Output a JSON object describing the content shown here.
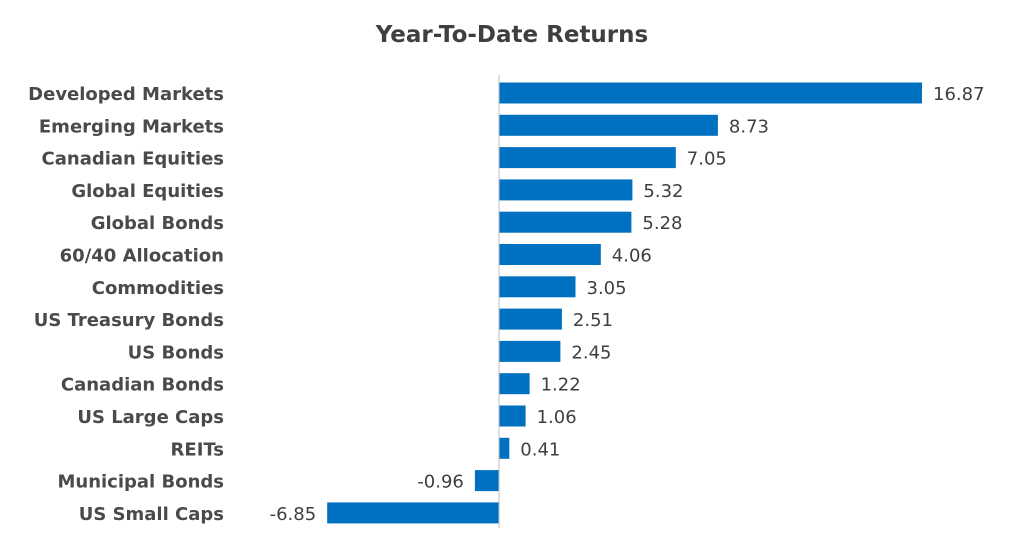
{
  "chart_data": {
    "type": "bar",
    "orientation": "horizontal",
    "title": "Year-To-Date Returns",
    "categories": [
      "Developed Markets",
      "Emerging Markets",
      "Canadian Equities",
      "Global Equities",
      "Global Bonds",
      "60/40 Allocation",
      "Commodities",
      "US Treasury Bonds",
      "US Bonds",
      "Canadian Bonds",
      "US Large Caps",
      "REITs",
      "Municipal Bonds",
      "US Small Caps"
    ],
    "values": [
      16.87,
      8.73,
      7.05,
      5.32,
      5.28,
      4.06,
      3.05,
      2.51,
      2.45,
      1.22,
      1.06,
      0.41,
      -0.96,
      -6.85
    ],
    "value_labels": [
      "16.87",
      "8.73",
      "7.05",
      "5.32",
      "5.28",
      "4.06",
      "3.05",
      "2.51",
      "2.45",
      "1.22",
      "1.06",
      "0.41",
      "-0.96",
      "-6.85"
    ],
    "bar_color": "#0070c0",
    "grid": false,
    "legend": "none"
  }
}
